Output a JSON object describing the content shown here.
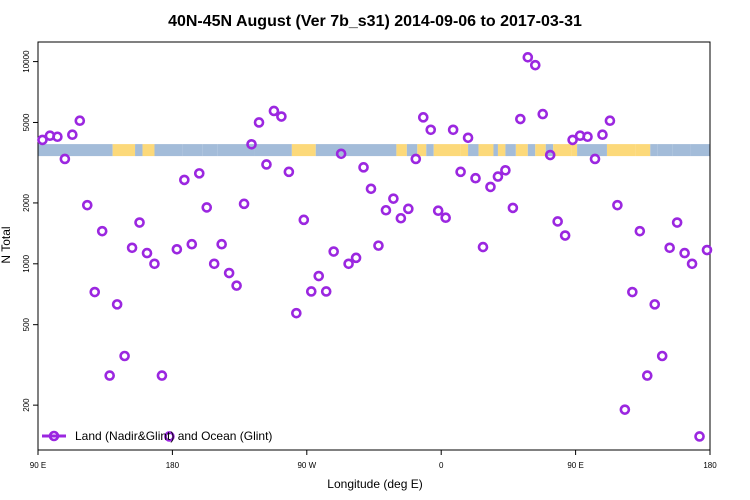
{
  "chart_data": {
    "type": "scatter",
    "title": "40N-45N August (Ver 7b_s31)   2014-09-06 to 2017-03-31",
    "xlabel": "Longitude (deg E)",
    "ylabel": "N Total",
    "x_scale": "longitude, starting at 90 E and increasing eastward through 180 and 0 back to 180",
    "y_scale": "log",
    "x_ticks": [
      "90 E",
      "180",
      "90 W",
      "0",
      "90 E",
      "180"
    ],
    "x_tick_values": [
      90,
      180,
      270,
      360,
      450,
      540
    ],
    "y_ticks": [
      "200",
      "500",
      "1000",
      "2000",
      "5000",
      "10000"
    ],
    "y_tick_values": [
      200,
      500,
      1000,
      2000,
      5000,
      10000
    ],
    "ylim": [
      120,
      12500
    ],
    "xlim": [
      90,
      540
    ],
    "grid": false,
    "legend_position": "bottom-left",
    "series": [
      {
        "name": "Land (Nadir&Glint) and Ocean (Glint)",
        "color": "#9b27e0",
        "marker": "open-circle",
        "x": [
          93,
          98,
          103,
          108,
          113,
          118,
          123,
          128,
          133,
          138,
          143,
          148,
          153,
          158,
          163,
          168,
          173,
          178,
          183,
          188,
          193,
          198,
          203,
          208,
          213,
          218,
          223,
          228,
          233,
          238,
          243,
          248,
          253,
          258,
          263,
          268,
          273,
          278,
          283,
          288,
          293,
          298,
          303,
          308,
          313,
          318,
          323,
          328,
          333,
          338,
          343,
          348,
          353,
          358,
          363,
          368,
          373,
          378,
          383,
          388,
          393,
          398,
          403,
          408,
          413,
          418,
          423,
          428,
          433,
          438,
          443,
          448,
          453,
          458,
          463,
          468,
          473,
          478,
          483,
          488,
          493,
          498,
          503,
          508,
          513,
          518,
          523,
          528,
          533,
          538
        ],
        "y": [
          4100,
          4300,
          4250,
          3300,
          4350,
          5100,
          1950,
          725,
          1450,
          280,
          630,
          350,
          1200,
          1600,
          1130,
          1000,
          280,
          140,
          1180,
          2600,
          1250,
          2800,
          1900,
          1000,
          1250,
          900,
          780,
          1980,
          3900,
          5000,
          3100,
          5700,
          5350,
          2850,
          570,
          1650,
          730,
          870,
          730,
          1150,
          3500,
          1000,
          1070,
          3000,
          2350,
          1230,
          1840,
          2100,
          1680,
          1870,
          3300,
          5300,
          4600,
          1830,
          1690,
          4600,
          2850,
          4200,
          2650,
          1210,
          2400,
          2700,
          2900,
          1890,
          5200,
          10500,
          9600,
          5500,
          3450,
          1620,
          1380,
          4100,
          4300,
          4250,
          3300,
          4350,
          5100,
          1950,
          190,
          725,
          1450,
          280,
          630,
          350,
          1200,
          1600,
          1130,
          1000,
          140,
          1170
        ],
        "show_first_n": 89
      }
    ],
    "surface_bar": {
      "y_center": 3650,
      "segments_x": [
        90,
        140,
        155,
        160,
        168,
        187,
        200,
        210,
        235,
        260,
        276,
        330,
        337,
        344,
        350,
        355,
        373,
        378,
        385,
        395,
        398,
        403,
        410,
        418,
        423,
        430,
        435,
        447,
        451,
        471,
        490,
        500,
        505,
        515,
        527,
        540
      ],
      "segments_type": [
        "ocean",
        "land",
        "ocean",
        "land",
        "ocean",
        "ocean",
        "ocean",
        "ocean",
        "ocean",
        "land",
        "ocean",
        "land",
        "ocean",
        "land",
        "ocean",
        "land",
        "land",
        "ocean",
        "land",
        "ocean",
        "land",
        "ocean",
        "land",
        "ocean",
        "land",
        "ocean",
        "land",
        "land",
        "ocean",
        "land",
        "land",
        "ocean",
        "ocean",
        "ocean",
        "ocean"
      ],
      "land_color": "#fcd97a",
      "ocean_color": "#a3bcd9"
    }
  }
}
